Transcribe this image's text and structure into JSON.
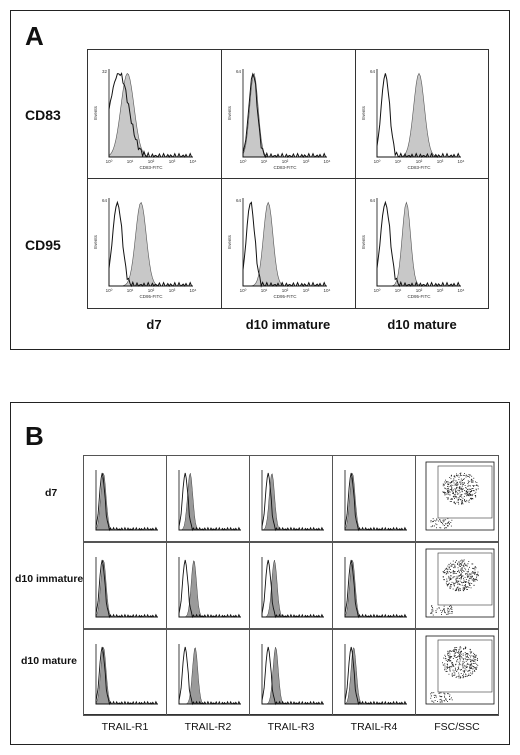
{
  "panel_a": {
    "letter": "A",
    "rows": [
      "CD83",
      "CD95"
    ],
    "columns": [
      "d7",
      "d10 immature",
      "d10 mature"
    ],
    "cells": [
      [
        {
          "ymax": "32",
          "ylabel": "Events",
          "xlabel": "CD83-FITC",
          "ticks": [
            "10⁰",
            "10¹",
            "10²",
            "10³",
            "10⁴"
          ],
          "open_peak": 0.12,
          "fill_peak": 0.22,
          "fill_width": 0.11,
          "open_width": 0.16
        },
        {
          "ymax": "64",
          "ylabel": "Events",
          "xlabel": "CD83-FITC",
          "ticks": [
            "10⁰",
            "10¹",
            "10²",
            "10³",
            "10⁴"
          ],
          "open_peak": 0.12,
          "fill_peak": 0.13,
          "fill_width": 0.07,
          "open_width": 0.07
        },
        {
          "ymax": "64",
          "ylabel": "Events",
          "xlabel": "CD83-FITC",
          "ticks": [
            "10⁰",
            "10¹",
            "10²",
            "10³",
            "10⁴"
          ],
          "open_peak": 0.1,
          "fill_peak": 0.5,
          "fill_width": 0.09,
          "open_width": 0.07
        }
      ],
      [
        {
          "ymax": "64",
          "ylabel": "Events",
          "xlabel": "CD95-FITC",
          "ticks": [
            "10⁰",
            "10¹",
            "10²",
            "10³",
            "10⁴"
          ],
          "open_peak": 0.1,
          "fill_peak": 0.38,
          "fill_width": 0.09,
          "open_width": 0.08
        },
        {
          "ymax": "64",
          "ylabel": "Events",
          "xlabel": "CD95-FITC",
          "ticks": [
            "10⁰",
            "10¹",
            "10²",
            "10³",
            "10⁴"
          ],
          "open_peak": 0.09,
          "fill_peak": 0.3,
          "fill_width": 0.08,
          "open_width": 0.07
        },
        {
          "ymax": "64",
          "ylabel": "Events",
          "xlabel": "CD95-FITC",
          "ticks": [
            "10⁰",
            "10¹",
            "10²",
            "10³",
            "10⁴"
          ],
          "open_peak": 0.1,
          "fill_peak": 0.35,
          "fill_width": 0.07,
          "open_width": 0.08
        }
      ]
    ]
  },
  "panel_b": {
    "letter": "B",
    "rows": [
      "d7",
      "d10 immature",
      "d10 mature"
    ],
    "columns": [
      "TRAIL-R1",
      "TRAIL-R2",
      "TRAIL-R3",
      "TRAIL-R4",
      "FSC/SSC"
    ],
    "hist_shift": [
      [
        0.0,
        0.06,
        0.04,
        0.0
      ],
      [
        0.0,
        0.12,
        0.08,
        0.0
      ],
      [
        0.0,
        0.14,
        0.1,
        0.02
      ]
    ]
  }
}
